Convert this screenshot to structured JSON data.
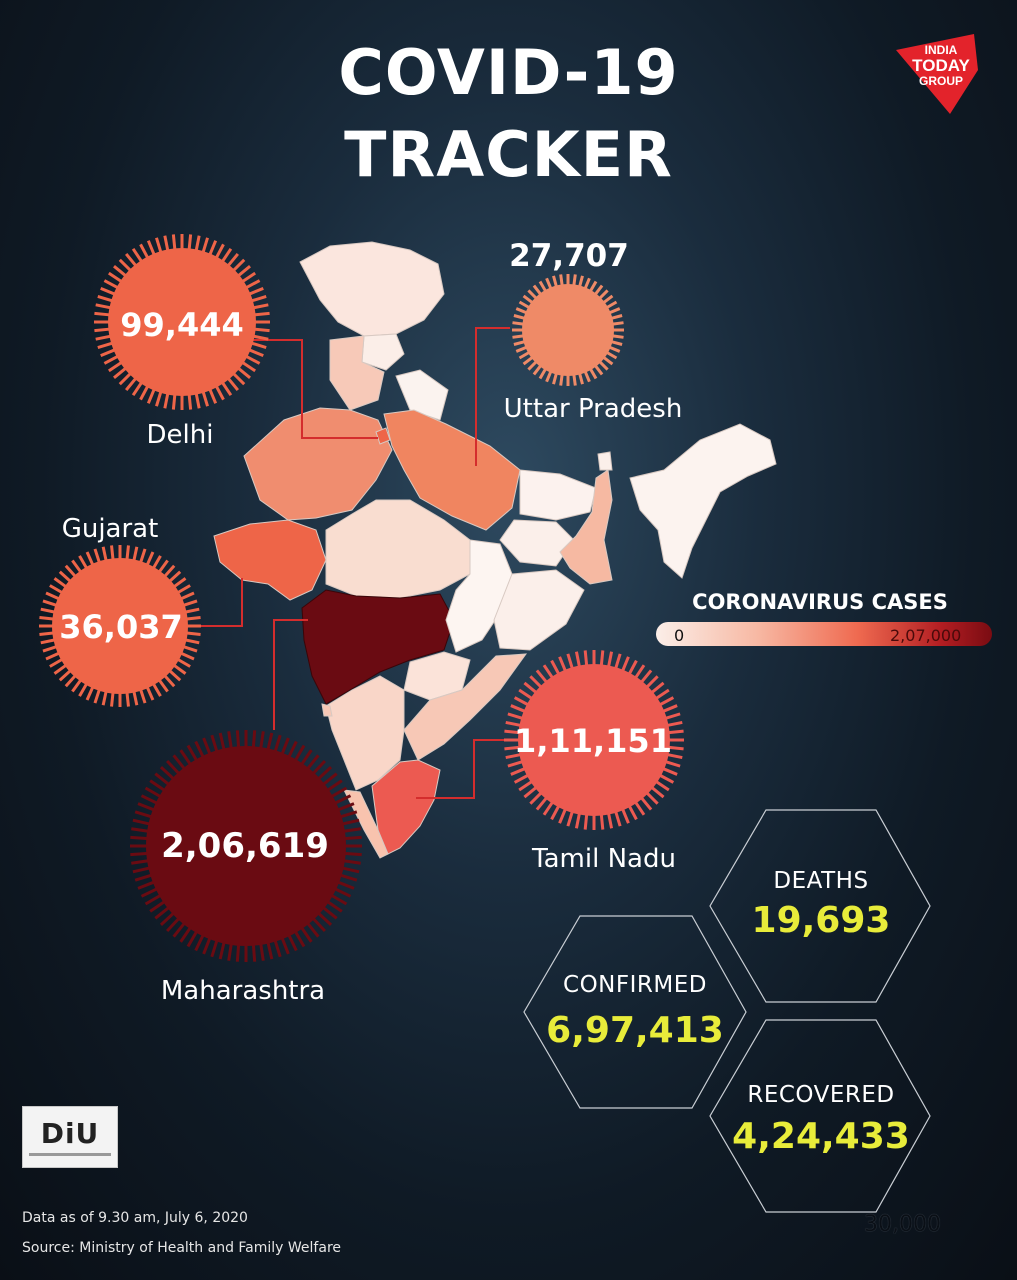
{
  "title": {
    "line1": "COVID-19",
    "line2": "TRACKER"
  },
  "brand": {
    "line1": "INDIA",
    "line2": "TODAY",
    "line3": "GROUP",
    "color": "#e3232b"
  },
  "states": [
    {
      "name": "Delhi",
      "cases": "99,444",
      "color": "#ee6548"
    },
    {
      "name": "Uttar Pradesh",
      "cases": "27,707",
      "color": "#ef8a67"
    },
    {
      "name": "Gujarat",
      "cases": "36,037",
      "color": "#ee6548"
    },
    {
      "name": "Maharashtra",
      "cases": "2,06,619",
      "color": "#6a0b12"
    },
    {
      "name": "Tamil Nadu",
      "cases": "1,11,151",
      "color": "#ec5a51"
    }
  ],
  "legend": {
    "title": "CORONAVIRUS CASES",
    "min": "0",
    "max": "2,07,000"
  },
  "totals": {
    "deaths": {
      "label": "DEATHS",
      "value": "19,693"
    },
    "confirmed": {
      "label": "CONFIRMED",
      "value": "6,97,413"
    },
    "recovered": {
      "label": "RECOVERED",
      "value": "4,24,433"
    }
  },
  "diu_logo": "DiU",
  "footer": {
    "date": "Data as of 9.30 am, July 6, 2020",
    "source": "Source: Ministry of Health and Family Welfare"
  },
  "ghost_text": "30,000"
}
